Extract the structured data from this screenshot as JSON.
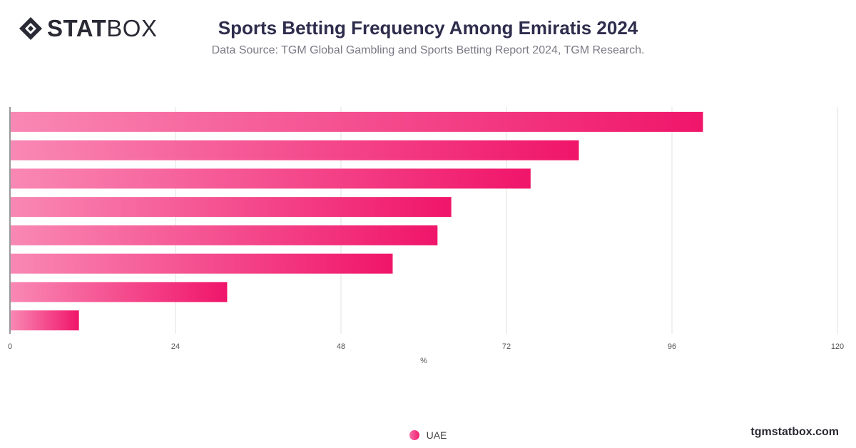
{
  "brand": {
    "logo_bold": "STAT",
    "logo_light": "BOX",
    "footer": "tgmstatbox.com"
  },
  "header": {
    "title": "Sports Betting Frequency Among Emiratis 2024",
    "subtitle": "Data Source: TGM Global Gambling and Sports Betting Report 2024, TGM Research."
  },
  "colors": {
    "bar_start": "#f988b4",
    "bar_end": "#f0156a",
    "grid": "#e2e2e2",
    "axis": "#333333"
  },
  "chart_data": {
    "type": "bar",
    "orientation": "horizontal",
    "xlabel": "%",
    "xlim": [
      0,
      120
    ],
    "xticks": [
      0,
      24,
      48,
      72,
      96,
      120
    ],
    "grid": true,
    "legend_position": "bottom",
    "series": [
      {
        "name": "UAE",
        "values": [
          100.5,
          82.5,
          75.5,
          64,
          62,
          55.5,
          31.5,
          10
        ]
      }
    ]
  }
}
